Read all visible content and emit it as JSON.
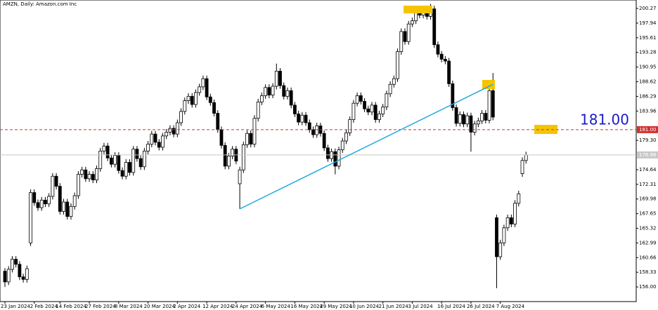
{
  "chart_data": {
    "type": "candlestick",
    "title": "AMZN, Daily:  Amazon.com Inc",
    "categories": [
      "23 Jan 2024",
      null,
      null,
      null,
      null,
      null,
      null,
      null,
      "2 Feb 2024",
      null,
      null,
      null,
      null,
      null,
      null,
      "14 Feb 2024",
      null,
      null,
      null,
      null,
      null,
      null,
      null,
      "27 Feb 2024",
      null,
      null,
      null,
      null,
      null,
      null,
      null,
      "8 Mar 2024",
      null,
      null,
      null,
      null,
      null,
      null,
      null,
      "20 Mar 2024",
      null,
      null,
      null,
      null,
      null,
      null,
      null,
      "2 Apr 2024",
      null,
      null,
      null,
      null,
      null,
      null,
      null,
      "12 Apr 2024",
      null,
      null,
      null,
      null,
      null,
      null,
      null,
      "24 Apr 2024",
      null,
      null,
      null,
      null,
      null,
      null,
      null,
      "6 May 2024",
      null,
      null,
      null,
      null,
      null,
      null,
      null,
      "16 May 2024",
      null,
      null,
      null,
      null,
      null,
      null,
      null,
      "29 May 2024",
      null,
      null,
      null,
      null,
      null,
      null,
      null,
      "10 Jun 2024",
      null,
      null,
      null,
      null,
      null,
      null,
      null,
      "21 Jun 2024",
      null,
      null,
      null,
      null,
      null,
      null,
      null,
      "3 Jul 2024",
      null,
      null,
      null,
      null,
      null,
      null,
      null,
      "16 Jul 2024",
      null,
      null,
      null,
      null,
      null,
      null,
      null,
      "26 Jul 2024",
      null,
      null,
      null,
      null,
      null,
      null,
      null,
      "7 Aug 2024",
      null,
      null,
      null,
      null,
      null,
      null,
      null
    ],
    "open": [
      158.5,
      156.8,
      158.8,
      160.4,
      159.6,
      157.6,
      157.2,
      163.0,
      171.0,
      169.4,
      168.6,
      169.8,
      169.2,
      170.4,
      173.6,
      172.0,
      168.0,
      169.5,
      167.2,
      168.8,
      170.5,
      173.9,
      174.6,
      173.2,
      173.9,
      173.0,
      174.8,
      177.6,
      178.4,
      176.5,
      175.5,
      176.9,
      174.5,
      173.6,
      175.8,
      174.2,
      177.9,
      176.4,
      175.1,
      177.6,
      178.7,
      180.3,
      179.0,
      178.2,
      180.0,
      180.6,
      181.2,
      180.3,
      182.1,
      183.9,
      185.6,
      186.3,
      185.0,
      186.9,
      187.8,
      189.1,
      186.2,
      185.3,
      183.6,
      181.0,
      178.5,
      175.2,
      176.8,
      177.9,
      172.4,
      174.6,
      178.6,
      180.4,
      178.7,
      182.8,
      185.4,
      186.4,
      187.7,
      186.5,
      187.9,
      190.3,
      188.0,
      186.3,
      187.2,
      184.9,
      183.5,
      182.2,
      183.3,
      182.1,
      181.0,
      180.2,
      181.6,
      180.4,
      178.1,
      176.4,
      177.5,
      175.2,
      177.8,
      179.2,
      180.5,
      182.6,
      185.2,
      186.4,
      185.5,
      184.3,
      183.8,
      184.9,
      182.6,
      183.5,
      184.6,
      186.7,
      188.2,
      189.1,
      193.4,
      196.6,
      195.0,
      197.8,
      198.3,
      199.6,
      199.2,
      200.1,
      199.0,
      200.2,
      194.5,
      193.0,
      192.2,
      191.9,
      188.3,
      184.5,
      182.0,
      183.4,
      181.9,
      183.2,
      180.6,
      181.9,
      182.4,
      183.6,
      182.5,
      187.2,
      167.0,
      160.8,
      163.0,
      165.4,
      167.0,
      166.0,
      169.3,
      174.0,
      176.1
    ],
    "high": [
      159.0,
      159.3,
      160.9,
      160.9,
      160.1,
      158.1,
      159.4,
      171.5,
      171.5,
      169.9,
      170.3,
      170.3,
      170.9,
      174.1,
      174.1,
      172.5,
      170.0,
      170.0,
      169.3,
      171.0,
      174.4,
      175.1,
      175.1,
      174.4,
      174.4,
      175.3,
      178.1,
      178.9,
      178.9,
      177.0,
      177.4,
      177.4,
      175.0,
      176.3,
      176.3,
      178.4,
      178.4,
      176.9,
      178.1,
      179.2,
      180.8,
      180.8,
      179.5,
      180.5,
      181.1,
      181.7,
      181.7,
      182.6,
      184.4,
      186.1,
      186.8,
      186.8,
      187.4,
      188.3,
      189.6,
      189.6,
      186.7,
      185.8,
      184.1,
      181.5,
      179.0,
      177.3,
      178.4,
      178.4,
      175.1,
      179.1,
      180.9,
      180.9,
      183.3,
      185.9,
      186.9,
      188.2,
      188.2,
      188.4,
      191.5,
      190.8,
      188.5,
      187.7,
      187.7,
      185.4,
      184.0,
      183.8,
      183.8,
      182.6,
      181.5,
      182.1,
      182.1,
      180.9,
      178.6,
      178.0,
      178.0,
      178.3,
      179.7,
      181.0,
      183.1,
      185.7,
      186.9,
      186.9,
      186.0,
      184.8,
      185.4,
      185.4,
      184.0,
      185.1,
      187.2,
      188.7,
      189.6,
      193.9,
      197.1,
      197.1,
      198.3,
      198.8,
      200.1,
      200.1,
      200.6,
      200.6,
      201.0,
      200.7,
      195.0,
      193.5,
      192.7,
      192.4,
      188.8,
      185.0,
      183.9,
      183.9,
      183.7,
      183.7,
      182.4,
      182.9,
      184.1,
      184.1,
      187.7,
      190.0,
      167.5,
      163.5,
      165.9,
      167.5,
      167.5,
      169.8,
      171.3,
      176.6,
      177.5
    ],
    "low": [
      156.0,
      156.3,
      158.3,
      159.1,
      157.1,
      156.7,
      156.7,
      162.5,
      168.9,
      168.1,
      168.1,
      168.7,
      168.7,
      169.9,
      171.5,
      167.5,
      167.5,
      166.7,
      166.7,
      168.3,
      170.0,
      173.4,
      172.7,
      172.7,
      172.5,
      172.5,
      174.3,
      177.1,
      176.0,
      175.0,
      175.0,
      174.0,
      173.1,
      173.1,
      173.7,
      173.7,
      175.9,
      174.6,
      174.6,
      177.1,
      178.2,
      178.5,
      177.7,
      177.7,
      179.5,
      180.1,
      179.8,
      179.8,
      181.6,
      183.4,
      185.1,
      184.5,
      184.5,
      186.4,
      187.3,
      185.7,
      184.8,
      183.1,
      180.5,
      178.0,
      174.7,
      174.7,
      176.3,
      175.5,
      168.4,
      174.1,
      178.1,
      178.2,
      178.2,
      182.3,
      184.9,
      185.9,
      186.0,
      186.0,
      187.4,
      187.5,
      185.8,
      185.8,
      184.4,
      183.0,
      181.7,
      181.7,
      181.6,
      180.5,
      179.7,
      179.7,
      179.9,
      177.6,
      175.9,
      175.9,
      173.9,
      174.7,
      177.3,
      178.7,
      180.0,
      182.1,
      184.7,
      185.0,
      183.8,
      183.3,
      183.3,
      182.1,
      182.1,
      183.0,
      184.1,
      186.2,
      187.7,
      188.6,
      192.9,
      194.5,
      194.5,
      197.3,
      197.8,
      198.7,
      198.7,
      198.5,
      198.5,
      194.0,
      192.5,
      191.7,
      191.4,
      187.8,
      184.0,
      181.5,
      181.5,
      181.4,
      181.4,
      177.5,
      180.1,
      181.4,
      181.9,
      182.0,
      182.0,
      182.5,
      155.8,
      160.3,
      162.5,
      164.9,
      165.5,
      165.5,
      168.8,
      173.5,
      175.6
    ],
    "close": [
      156.8,
      158.8,
      160.4,
      159.6,
      157.6,
      157.2,
      158.9,
      171.0,
      169.4,
      168.6,
      169.8,
      169.2,
      170.4,
      173.6,
      172.0,
      168.0,
      169.5,
      167.2,
      168.8,
      170.5,
      173.9,
      174.6,
      173.2,
      173.9,
      173.0,
      174.8,
      177.6,
      178.4,
      176.5,
      175.5,
      176.9,
      174.5,
      173.6,
      175.8,
      174.2,
      177.9,
      176.4,
      175.1,
      177.6,
      178.7,
      180.3,
      179.0,
      178.2,
      180.0,
      180.6,
      181.2,
      180.3,
      182.1,
      183.9,
      185.6,
      186.3,
      185.0,
      186.9,
      187.8,
      189.1,
      186.2,
      185.3,
      183.6,
      181.0,
      178.5,
      175.2,
      176.8,
      177.9,
      176.0,
      174.6,
      178.6,
      180.4,
      178.7,
      182.8,
      185.4,
      186.4,
      187.7,
      186.5,
      187.9,
      190.3,
      188.0,
      186.3,
      187.2,
      184.9,
      183.5,
      182.2,
      183.3,
      182.1,
      181.0,
      180.2,
      181.6,
      180.4,
      178.1,
      176.4,
      177.5,
      175.2,
      177.8,
      179.2,
      180.5,
      182.6,
      185.2,
      186.4,
      185.5,
      184.3,
      183.8,
      184.9,
      182.6,
      183.5,
      184.6,
      186.7,
      188.2,
      189.1,
      193.4,
      196.6,
      195.0,
      197.8,
      198.3,
      199.6,
      199.2,
      200.1,
      199.0,
      200.2,
      194.5,
      193.0,
      192.2,
      191.9,
      188.3,
      184.5,
      182.0,
      183.4,
      181.9,
      183.2,
      180.6,
      181.9,
      182.4,
      183.6,
      182.5,
      187.2,
      183.0,
      160.8,
      163.0,
      165.4,
      167.0,
      166.0,
      169.3,
      170.8,
      176.1,
      176.98
    ],
    "ylim": [
      153.67,
      201.61
    ],
    "yticks": [
      200.27,
      197.94,
      195.61,
      193.28,
      190.95,
      188.62,
      186.29,
      183.96,
      {
        "value": 179.3,
        "label": "179.30"
      },
      174.64,
      172.31,
      169.98,
      167.65,
      165.32,
      162.99,
      160.66,
      158.33,
      {
        "value": 156,
        "label": "156.00"
      }
    ],
    "level": {
      "value": 181,
      "label": "181.00",
      "color": "#d03030"
    },
    "current_price": {
      "value": 176.98,
      "label": "176.98"
    },
    "annotation": "181.00",
    "trendline": {
      "x": [
        64,
        133
      ],
      "y": [
        168.4,
        188.2
      ],
      "color": "#1fa8e0"
    }
  }
}
